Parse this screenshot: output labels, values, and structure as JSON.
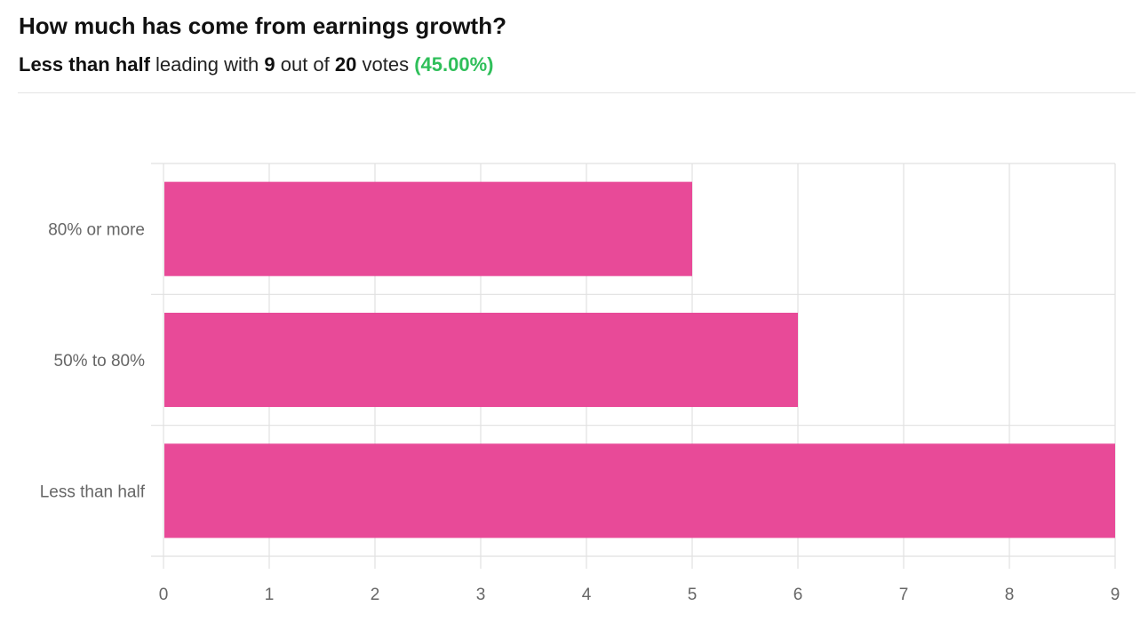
{
  "poll": {
    "title": "How much has come from earnings growth?",
    "leader": "Less than half",
    "leading_text": "leading with",
    "leader_votes": "9",
    "out_of_text": "out of",
    "total_votes": "20",
    "votes_text": "votes",
    "leader_percent": "(45.00%)"
  },
  "colors": {
    "bar": "#e84a98",
    "grid": "#e1e1e1",
    "percent": "#2fbf5a"
  },
  "chart_data": {
    "type": "bar",
    "orientation": "horizontal",
    "categories": [
      "80% or more",
      "50% to 80%",
      "Less than half"
    ],
    "values": [
      5,
      6,
      9
    ],
    "xlim": [
      0,
      9
    ],
    "xticks": [
      "0",
      "1",
      "2",
      "3",
      "4",
      "5",
      "6",
      "7",
      "8",
      "9"
    ],
    "grid": true,
    "legend": "none"
  }
}
